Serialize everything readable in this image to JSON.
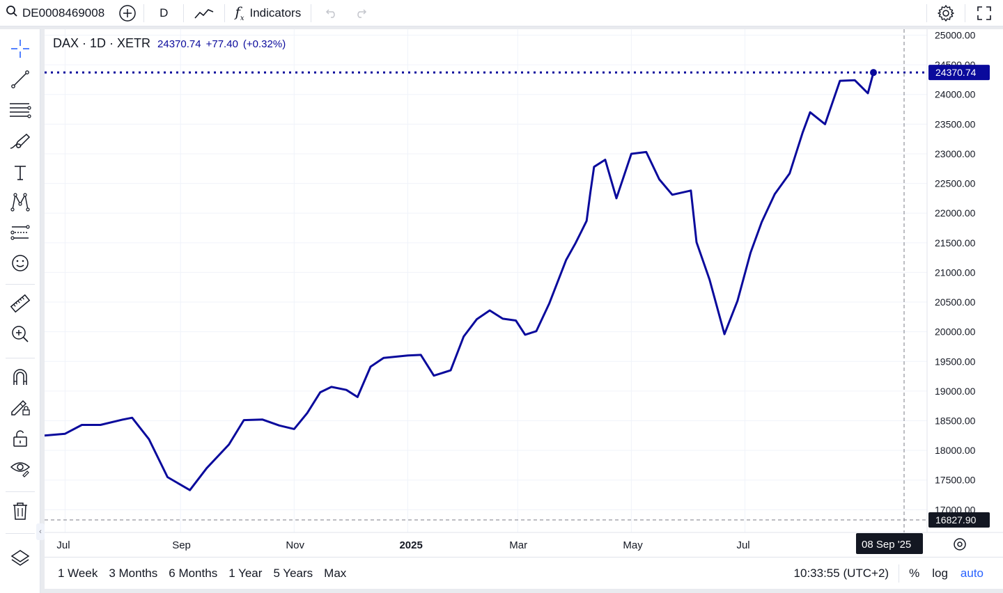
{
  "toolbar": {
    "symbol": "DE0008469008",
    "interval": "D",
    "indicators_label": "Indicators"
  },
  "legend": {
    "title": "DAX · 1D · XETR",
    "last": "24370.74",
    "change": "+77.40",
    "change_pct": "(+0.32%)"
  },
  "price_axis": {
    "ticks": [
      "25000.00",
      "24500.00",
      "24000.00",
      "23500.00",
      "23000.00",
      "22500.00",
      "22000.00",
      "21500.00",
      "21000.00",
      "20500.00",
      "20000.00",
      "19500.00",
      "19000.00",
      "18500.00",
      "18000.00",
      "17500.00",
      "17000.00"
    ],
    "last_price_label": "24370.74",
    "crosshair_price_label": "16827.90"
  },
  "time_axis": {
    "labels": [
      "Jul",
      "Sep",
      "Nov",
      "2025",
      "Mar",
      "May",
      "Jul"
    ],
    "crosshair_date_label": "08 Sep '25"
  },
  "ranges": [
    "1 Week",
    "3 Months",
    "6 Months",
    "1 Year",
    "5 Years",
    "Max"
  ],
  "status": {
    "clock": "10:33:55 (UTC+2)",
    "percent": "%",
    "log": "log",
    "auto": "auto"
  },
  "colors": {
    "series": "#0a0a9c",
    "accent": "#2962ff",
    "grid": "#f0f3fa"
  },
  "icons": {
    "left_tools": [
      "crosshair-icon",
      "trend-line-icon",
      "horizontal-lines-icon",
      "brush-icon",
      "text-icon",
      "pattern-icon",
      "forecast-icon",
      "emoji-icon",
      "ruler-icon",
      "zoom-in-icon",
      "magnet-icon",
      "lock-drawing-icon",
      "unlock-icon",
      "eye-icon",
      "trash-icon",
      "layers-icon"
    ]
  },
  "chart_data": {
    "type": "line",
    "title": "DAX · 1D · XETR",
    "xlabel": "",
    "ylabel": "",
    "x": [
      "2024-06-20",
      "2024-07-01",
      "2024-07-10",
      "2024-07-20",
      "2024-08-01",
      "2024-08-06",
      "2024-08-15",
      "2024-08-25",
      "2024-09-06",
      "2024-09-15",
      "2024-09-27",
      "2024-10-05",
      "2024-10-15",
      "2024-10-24",
      "2024-11-01",
      "2024-11-08",
      "2024-11-15",
      "2024-11-21",
      "2024-11-29",
      "2024-12-05",
      "2024-12-12",
      "2024-12-19",
      "2025-01-01",
      "2025-01-08",
      "2025-01-15",
      "2025-01-24",
      "2025-01-31",
      "2025-02-07",
      "2025-02-14",
      "2025-02-21",
      "2025-02-28",
      "2025-03-05",
      "2025-03-11",
      "2025-03-18",
      "2025-03-27",
      "2025-04-01",
      "2025-04-04",
      "2025-04-07",
      "2025-04-09",
      "2025-04-11",
      "2025-04-17",
      "2025-04-23",
      "2025-05-01",
      "2025-05-09",
      "2025-05-16",
      "2025-05-23",
      "2025-06-02",
      "2025-06-05",
      "2025-06-12",
      "2025-06-20",
      "2025-06-27",
      "2025-07-04",
      "2025-07-10",
      "2025-07-17",
      "2025-07-25",
      "2025-08-01",
      "2025-08-05",
      "2025-08-13",
      "2025-08-21",
      "2025-08-29",
      "2025-09-05",
      "2025-09-08"
    ],
    "series": [
      {
        "values": [
          18250,
          18280,
          18430,
          18430,
          18520,
          18550,
          18190,
          17550,
          17330,
          17700,
          18100,
          18510,
          18520,
          18420,
          18360,
          18630,
          18980,
          19070,
          19020,
          18900,
          19410,
          19560,
          19600,
          19610,
          19260,
          19350,
          19920,
          20210,
          20360,
          20220,
          20190,
          19950,
          20010,
          20480,
          21210,
          21490,
          21680,
          21870,
          22340,
          22780,
          22900,
          22250,
          23000,
          23030,
          22570,
          22310,
          22380,
          21510,
          20880,
          19960,
          20520,
          21330,
          21850,
          22320,
          22670,
          23360,
          23700,
          23500,
          24230,
          24240,
          24020,
          24370.74
        ]
      }
    ],
    "ylim": [
      16827.9,
      25100
    ],
    "y_ticks": [
      17000,
      17500,
      18000,
      18500,
      19000,
      19500,
      20000,
      20500,
      21000,
      21500,
      22000,
      22500,
      23000,
      23500,
      24000,
      24500,
      25000
    ],
    "last_value": 24370.74,
    "change": 77.4,
    "change_pct": 0.32,
    "grid": true
  }
}
